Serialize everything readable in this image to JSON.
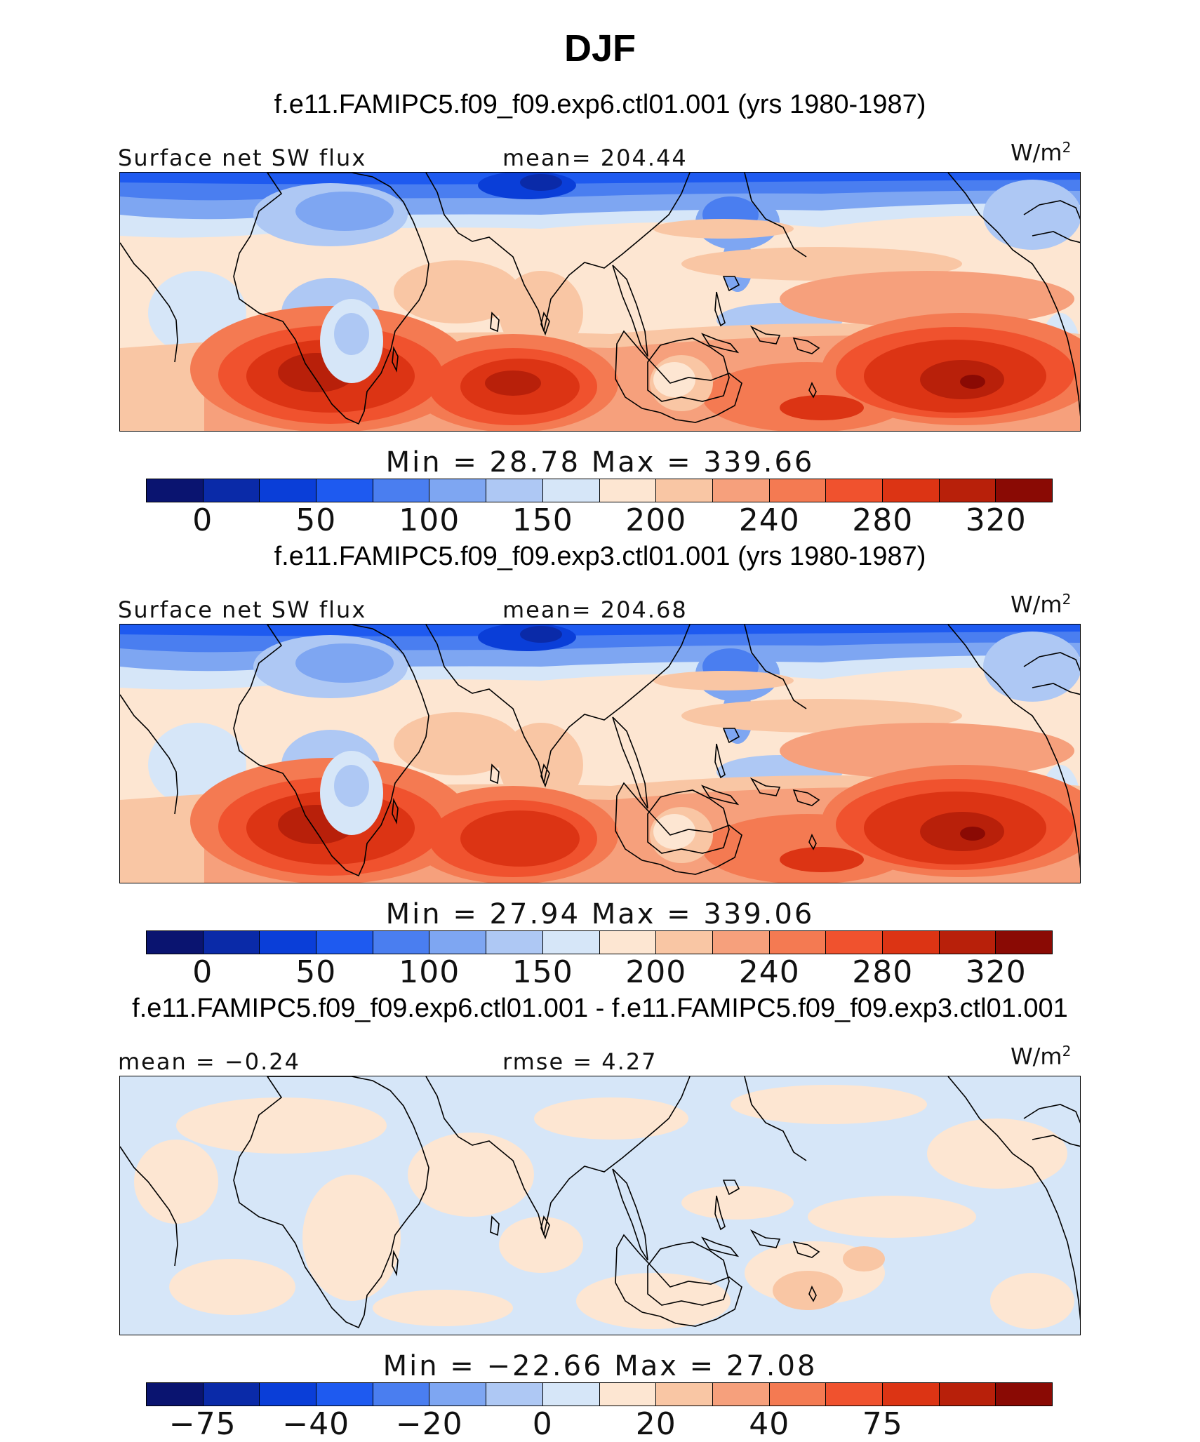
{
  "title": "DJF",
  "panels": [
    {
      "case_title": "f.e11.FAMIPC5.f09_f09.exp6.ctl01.001 (yrs 1980-1987)",
      "left_label": "Surface net SW flux",
      "center_label": "mean= 204.44",
      "units_base": "W/m",
      "units_sup": "2",
      "minmax": "Min =   28.78  Max  =  339.66",
      "colors": [
        "#0a1470",
        "#0a2aa8",
        "#0a3ed8",
        "#1e5af0",
        "#4a7ef0",
        "#7ea6f2",
        "#aec8f4",
        "#d6e6f8",
        "#fde6d2",
        "#f9c6a4",
        "#f6a07c",
        "#f47a52",
        "#f0522e",
        "#dc3414",
        "#b8200a",
        "#8a0a04"
      ],
      "ticks": [
        "0",
        "50",
        "100",
        "150",
        "200",
        "240",
        "280",
        "320"
      ],
      "field": "sw"
    },
    {
      "case_title": "f.e11.FAMIPC5.f09_f09.exp3.ctl01.001 (yrs 1980-1987)",
      "left_label": "Surface net SW flux",
      "center_label": "mean= 204.68",
      "units_base": "W/m",
      "units_sup": "2",
      "minmax": "Min =   27.94  Max  =  339.06",
      "colors": [
        "#0a1470",
        "#0a2aa8",
        "#0a3ed8",
        "#1e5af0",
        "#4a7ef0",
        "#7ea6f2",
        "#aec8f4",
        "#d6e6f8",
        "#fde6d2",
        "#f9c6a4",
        "#f6a07c",
        "#f47a52",
        "#f0522e",
        "#dc3414",
        "#b8200a",
        "#8a0a04"
      ],
      "ticks": [
        "0",
        "50",
        "100",
        "150",
        "200",
        "240",
        "280",
        "320"
      ],
      "field": "sw"
    },
    {
      "case_title": "f.e11.FAMIPC5.f09_f09.exp6.ctl01.001 - f.e11.FAMIPC5.f09_f09.exp3.ctl01.001",
      "left_label": "mean =  −0.24",
      "center_label": "rmse =    4.27",
      "units_base": "W/m",
      "units_sup": "2",
      "minmax": "Min = −22.66  Max  =   27.08",
      "colors": [
        "#0a1470",
        "#0a2aa8",
        "#0a3ed8",
        "#1e5af0",
        "#4a7ef0",
        "#7ea6f2",
        "#aec8f4",
        "#d6e6f8",
        "#fde6d2",
        "#f9c6a4",
        "#f6a07c",
        "#f47a52",
        "#f0522e",
        "#dc3414",
        "#b8200a",
        "#8a0a04"
      ],
      "ticks": [
        "−75",
        "−40",
        "−20",
        "0",
        "20",
        "40",
        "75"
      ],
      "field": "diff"
    }
  ]
}
